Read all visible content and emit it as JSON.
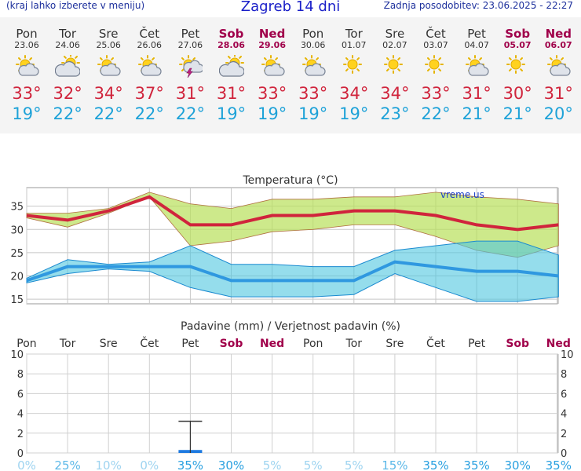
{
  "header": {
    "left_note": "(kraj lahko izberete v meniju)",
    "title": "Zagreb 14 dni",
    "updated": "Zadnja posodobitev: 23.06.2025 - 22:27"
  },
  "days": [
    {
      "name": "Pon",
      "date": "23.06",
      "weekend": false,
      "icon": "sun-cloud-icon",
      "max": "33°",
      "min": "19°"
    },
    {
      "name": "Tor",
      "date": "24.06",
      "weekend": false,
      "icon": "cloudy-sun-icon",
      "max": "32°",
      "min": "22°"
    },
    {
      "name": "Sre",
      "date": "25.06",
      "weekend": false,
      "icon": "sun-cloud-icon",
      "max": "34°",
      "min": "22°"
    },
    {
      "name": "Čet",
      "date": "26.06",
      "weekend": false,
      "icon": "sun-cloud-icon",
      "max": "37°",
      "min": "22°"
    },
    {
      "name": "Pet",
      "date": "27.06",
      "weekend": false,
      "icon": "thunderstorm-sun-icon",
      "max": "31°",
      "min": "22°"
    },
    {
      "name": "Sob",
      "date": "28.06",
      "weekend": true,
      "icon": "cloudy-sun-icon",
      "max": "31°",
      "min": "19°"
    },
    {
      "name": "Ned",
      "date": "29.06",
      "weekend": true,
      "icon": "sun-cloud-icon",
      "max": "33°",
      "min": "19°"
    },
    {
      "name": "Pon",
      "date": "30.06",
      "weekend": false,
      "icon": "sun-cloud-icon",
      "max": "33°",
      "min": "19°"
    },
    {
      "name": "Tor",
      "date": "01.07",
      "weekend": false,
      "icon": "sun-icon",
      "max": "34°",
      "min": "19°"
    },
    {
      "name": "Sre",
      "date": "02.07",
      "weekend": false,
      "icon": "sun-icon",
      "max": "34°",
      "min": "23°"
    },
    {
      "name": "Čet",
      "date": "03.07",
      "weekend": false,
      "icon": "sun-icon",
      "max": "33°",
      "min": "22°"
    },
    {
      "name": "Pet",
      "date": "04.07",
      "weekend": false,
      "icon": "sun-cloud-icon",
      "max": "31°",
      "min": "21°"
    },
    {
      "name": "Sob",
      "date": "05.07",
      "weekend": true,
      "icon": "sun-icon",
      "max": "30°",
      "min": "21°"
    },
    {
      "name": "Ned",
      "date": "06.07",
      "weekend": true,
      "icon": "sun-cloud-icon",
      "max": "31°",
      "min": "20°"
    }
  ],
  "colors": {
    "max": "#d0243c",
    "min": "#1ea2d8",
    "weekend": "#a0004a",
    "max_band": "#b8e05a",
    "min_band": "#4fc6e0"
  },
  "chart_data": [
    {
      "type": "line",
      "title": "Temperatura (°C)",
      "watermark": "vreme.us",
      "ylim": [
        14,
        39
      ],
      "yticks": [
        15,
        20,
        25,
        30,
        35
      ],
      "series": [
        {
          "values": [
            33,
            32,
            34,
            37,
            31,
            31,
            33,
            33,
            34,
            34,
            33,
            31,
            30,
            31
          ]
        },
        {
          "values": [
            19,
            22,
            22,
            22,
            22,
            19,
            19,
            19,
            19,
            23,
            22,
            21,
            21,
            20
          ]
        }
      ],
      "max_band": {
        "low": [
          32.5,
          30.5,
          33.5,
          37,
          26.5,
          27.5,
          29.5,
          30,
          31,
          31,
          28.5,
          25.5,
          24,
          26.5
        ],
        "high": [
          33.5,
          33.5,
          34.5,
          38,
          35.5,
          34.5,
          36.5,
          36.5,
          37,
          37,
          38,
          37,
          36.5,
          35.5
        ]
      },
      "min_band": {
        "low": [
          18.5,
          20.5,
          21.5,
          21,
          17.5,
          15.5,
          15.5,
          15.5,
          16,
          20.5,
          17.5,
          14.5,
          14.5,
          15.5
        ],
        "high": [
          19.5,
          23.5,
          22.5,
          23,
          26.5,
          22.5,
          22.5,
          22,
          22,
          25.5,
          26.5,
          27.5,
          27.5,
          24.5
        ]
      }
    },
    {
      "type": "bar",
      "title": "Padavine (mm) / Verjetnost padavin (%)",
      "categories": [
        "Pon",
        "Tor",
        "Sre",
        "Čet",
        "Pet",
        "Sob",
        "Ned",
        "Pon",
        "Tor",
        "Sre",
        "Čet",
        "Pet",
        "Sob",
        "Ned"
      ],
      "ylim": [
        0,
        10
      ],
      "yticks": [
        0,
        2,
        4,
        6,
        8,
        10
      ],
      "values": [
        0,
        0,
        0,
        0,
        0.3,
        0,
        0,
        0,
        0,
        0,
        0,
        0,
        0,
        0
      ],
      "error_high": [
        null,
        null,
        null,
        null,
        3.2,
        null,
        null,
        null,
        null,
        null,
        null,
        null,
        null,
        null
      ],
      "probability": [
        "0%",
        "25%",
        "10%",
        "0%",
        "35%",
        "30%",
        "5%",
        "5%",
        "5%",
        "15%",
        "35%",
        "35%",
        "30%",
        "35%"
      ],
      "probability_values": [
        0,
        25,
        10,
        0,
        35,
        30,
        5,
        5,
        5,
        15,
        35,
        35,
        30,
        35
      ]
    }
  ]
}
